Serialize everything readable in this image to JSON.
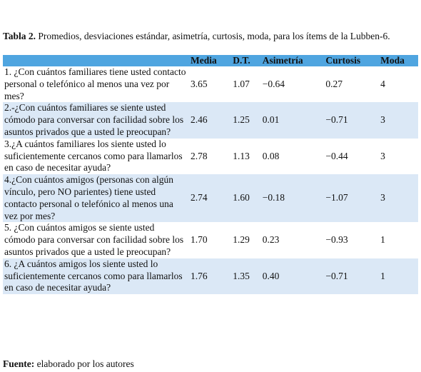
{
  "caption": {
    "label": "Tabla 2.",
    "text": "Promedios, desviaciones estándar, asimetría, curtosis, moda, para los ítems de la Lubben-6."
  },
  "table": {
    "columns": [
      "",
      "Media",
      "D.T.",
      "Asimetría",
      "Curtosis",
      "Moda"
    ],
    "rows": [
      [
        "1. ¿Con cuántos familiares tiene usted contacto personal o telefónico al menos una vez por mes?",
        "3.65",
        "1.07",
        "−0.64",
        "0.27",
        "4"
      ],
      [
        "2.-¿Con cuántos familiares se siente usted cómodo para conversar con facilidad sobre los asuntos privados que a usted le preocupan?",
        "2.46",
        "1.25",
        "0.01",
        "−0.71",
        "3"
      ],
      [
        "3.¿A cuántos familiares los siente usted lo suficientemente cercanos como para llamarlos en caso de necesitar ayuda?",
        "2.78",
        "1.13",
        "0.08",
        "−0.44",
        "3"
      ],
      [
        "4.¿Con cuántos amigos (personas con algún vínculo, pero NO parientes) tiene usted contacto personal o telefónico al menos una vez por mes?",
        "2.74",
        "1.60",
        "−0.18",
        "−1.07",
        "3"
      ],
      [
        "5. ¿Con cuántos amigos se siente usted cómodo para conversar con facilidad sobre los asuntos privados que a usted le preocupan?",
        "1.70",
        "1.29",
        "0.23",
        "−0.93",
        "1"
      ],
      [
        "6. ¿A cuántos amigos los siente usted lo suficientemente cercanos como para llamarlos en caso de necesitar ayuda?",
        "1.76",
        "1.35",
        "0.40",
        "−0.71",
        "1"
      ]
    ]
  },
  "footer": {
    "label": "Fuente:",
    "text": "elaborado por los autores"
  }
}
